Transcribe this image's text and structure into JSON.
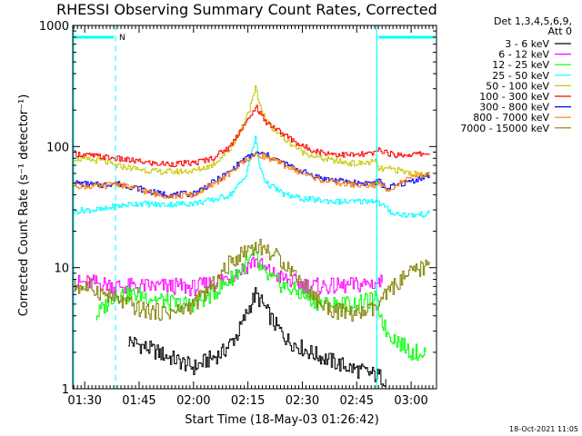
{
  "chart_data": {
    "type": "line",
    "title": "RHESSI Observing Summary Count Rates, Corrected",
    "xlabel": "Start Time (18-May-03 01:26:42)",
    "ylabel": "Corrected Count Rate (s⁻¹ detector⁻¹)",
    "y_scale": "log",
    "ylim": [
      1,
      1000
    ],
    "xlim": [
      "01:26:42",
      "03:07:00"
    ],
    "x_ticks": [
      "01:30",
      "01:45",
      "02:00",
      "02:15",
      "02:30",
      "02:45",
      "03:00"
    ],
    "y_ticks": [
      "1",
      "10",
      "100",
      "1000"
    ],
    "legend_header": [
      "Det 1,3,4,5,6,9,",
      "Att 0"
    ],
    "legend_position": "top-right, outside plot",
    "series": [
      {
        "name": "3 - 6 keV",
        "color": "#000000",
        "x": [
          "01:30",
          "01:38",
          "01:42",
          "01:50",
          "02:00",
          "02:08",
          "02:12",
          "02:15",
          "02:17",
          "02:19",
          "02:22",
          "02:26",
          "02:32",
          "02:40",
          "02:46",
          "02:50",
          "02:53"
        ],
        "y": [
          null,
          null,
          2.5,
          2.0,
          1.5,
          2.0,
          2.8,
          4.5,
          6.0,
          5.0,
          3.5,
          2.5,
          2.0,
          1.6,
          1.4,
          1.3,
          1.2
        ]
      },
      {
        "name": "6 - 12 keV",
        "color": "#ff00ff",
        "x": [
          "01:27",
          "01:32",
          "01:37",
          "01:40",
          "01:45",
          "01:50",
          "01:55",
          "02:00",
          "02:05",
          "02:10",
          "02:15",
          "02:17",
          "02:20",
          "02:25",
          "02:30",
          "02:35",
          "02:40",
          "02:45",
          "02:50",
          "02:52"
        ],
        "y": [
          7.5,
          7.5,
          7.2,
          7.0,
          7.0,
          7.0,
          7.0,
          6.8,
          7.5,
          8.5,
          10.5,
          11.5,
          9.5,
          8.0,
          7.2,
          7.0,
          7.0,
          7.2,
          7.5,
          7.5
        ]
      },
      {
        "name": "12 - 25 keV",
        "color": "#00ff00",
        "x": [
          "01:33",
          "01:36",
          "01:38",
          "01:45",
          "01:55",
          "02:00",
          "02:05",
          "02:10",
          "02:15",
          "02:17",
          "02:18",
          "02:20",
          "02:25",
          "02:30",
          "02:35",
          "02:45",
          "02:50",
          "02:53",
          "03:00",
          "03:04"
        ],
        "y": [
          4.0,
          5.0,
          6.0,
          6.0,
          5.0,
          5.0,
          6.0,
          8.0,
          11.0,
          13.0,
          10.0,
          8.5,
          7.0,
          6.0,
          5.0,
          5.0,
          5.5,
          3.0,
          2.0,
          2.0
        ]
      },
      {
        "name": "25 - 50 keV",
        "color": "#00ffff",
        "x": [
          "01:27",
          "01:30",
          "01:35",
          "01:38",
          "01:45",
          "01:50",
          "02:00",
          "02:05",
          "02:10",
          "02:14",
          "02:16",
          "02:17",
          "02:18",
          "02:20",
          "02:25",
          "02:30",
          "02:40",
          "02:45",
          "02:50",
          "02:53",
          "02:55",
          "03:00",
          "03:05"
        ],
        "y": [
          29,
          30,
          30,
          32,
          34,
          33,
          34,
          36,
          40,
          55,
          90,
          120,
          70,
          50,
          40,
          37,
          35,
          35,
          36,
          31,
          28,
          27,
          28
        ]
      },
      {
        "name": "50 - 100 keV",
        "color": "#c8c800",
        "x": [
          "01:27",
          "01:30",
          "01:35",
          "01:38",
          "01:45",
          "01:50",
          "01:55",
          "02:00",
          "02:05",
          "02:10",
          "02:13",
          "02:16",
          "02:17",
          "02:18",
          "02:20",
          "02:25",
          "02:30",
          "02:35",
          "02:40",
          "02:45",
          "02:50",
          "02:51",
          "02:55",
          "03:00",
          "03:05"
        ],
        "y": [
          80,
          78,
          76,
          70,
          65,
          62,
          62,
          63,
          70,
          95,
          140,
          230,
          300,
          230,
          160,
          115,
          90,
          80,
          75,
          72,
          75,
          65,
          65,
          60,
          58
        ]
      },
      {
        "name": "100 - 300 keV",
        "color": "#ff0000",
        "x": [
          "01:27",
          "01:30",
          "01:35",
          "01:38",
          "01:45",
          "01:50",
          "01:55",
          "02:00",
          "02:05",
          "02:10",
          "02:13",
          "02:16",
          "02:17",
          "02:18",
          "02:20",
          "02:25",
          "02:30",
          "02:35",
          "02:40",
          "02:45",
          "02:50",
          "02:51",
          "02:55",
          "03:00",
          "03:05"
        ],
        "y": [
          88,
          85,
          82,
          80,
          75,
          72,
          72,
          73,
          80,
          100,
          140,
          180,
          220,
          190,
          160,
          125,
          100,
          90,
          86,
          85,
          88,
          95,
          85,
          86,
          88
        ]
      },
      {
        "name": "300 - 800 keV",
        "color": "#0000ff",
        "x": [
          "01:27",
          "01:30",
          "01:35",
          "01:38",
          "01:45",
          "01:50",
          "01:55",
          "02:00",
          "02:05",
          "02:10",
          "02:13",
          "02:16",
          "02:18",
          "02:20",
          "02:25",
          "02:30",
          "02:35",
          "02:40",
          "02:45",
          "02:50",
          "02:51",
          "02:53",
          "03:00",
          "03:05"
        ],
        "y": [
          50,
          49,
          48,
          50,
          45,
          41,
          40,
          41,
          50,
          62,
          75,
          85,
          88,
          85,
          72,
          62,
          55,
          52,
          50,
          50,
          52,
          45,
          52,
          58
        ]
      },
      {
        "name": "800 - 7000 keV",
        "color": "#ff8000",
        "x": [
          "01:27",
          "01:30",
          "01:35",
          "01:38",
          "01:45",
          "01:50",
          "01:55",
          "02:00",
          "02:05",
          "02:10",
          "02:13",
          "02:16",
          "02:18",
          "02:20",
          "02:25",
          "02:30",
          "02:35",
          "02:40",
          "02:45",
          "02:50",
          "02:51",
          "02:53",
          "03:00",
          "03:05"
        ],
        "y": [
          48,
          47,
          47,
          50,
          44,
          40,
          39,
          40,
          48,
          60,
          73,
          83,
          86,
          82,
          70,
          60,
          53,
          50,
          48,
          48,
          50,
          44,
          55,
          60
        ]
      },
      {
        "name": "7000 - 15000 keV",
        "color": "#808000",
        "x": [
          "01:27",
          "01:32",
          "01:38",
          "01:42",
          "01:45",
          "01:50",
          "01:55",
          "02:00",
          "02:05",
          "02:10",
          "02:15",
          "02:18",
          "02:20",
          "02:25",
          "02:30",
          "02:35",
          "02:40",
          "02:45",
          "02:50",
          "02:55",
          "03:00",
          "03:05"
        ],
        "y": [
          7.0,
          6.8,
          5.5,
          5.0,
          4.5,
          4.3,
          4.3,
          5.0,
          7.0,
          11.0,
          14.5,
          15.0,
          14.0,
          11.0,
          7.5,
          5.0,
          4.3,
          4.2,
          4.5,
          7.0,
          9.0,
          10.5
        ]
      }
    ],
    "annotations": [
      {
        "text": "N",
        "x": "01:39"
      }
    ],
    "night_intervals": [
      [
        "01:26:42",
        "01:38:30"
      ],
      [
        "02:50:30",
        "03:07:00"
      ]
    ],
    "footer_date": "18-Oct-2021 11:05"
  }
}
